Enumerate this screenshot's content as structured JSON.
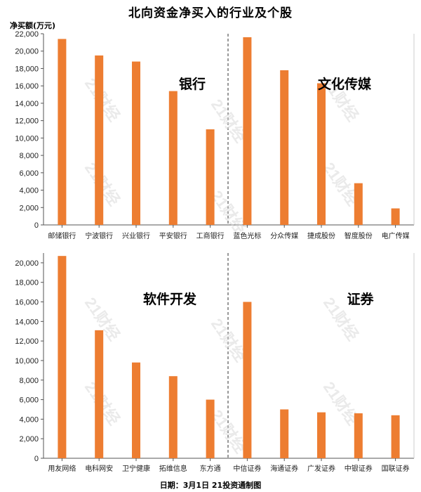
{
  "title": "北向资金净买入的行业及个股",
  "unit_label": "净买额(万元)",
  "footer": "日期：3月1日 21投资通制图",
  "watermark": "21财经",
  "colors": {
    "bar": "#ED7D31",
    "axis": "#555555",
    "divider": "#333333"
  },
  "chart_data": [
    {
      "type": "bar",
      "ylim": [
        0,
        22000
      ],
      "yticks": [
        "0",
        "2,000",
        "4,000",
        "6,000",
        "8,000",
        "10,000",
        "12,000",
        "14,000",
        "16,000",
        "18,000",
        "20,000",
        "22,000"
      ],
      "tick_values": [
        0,
        2000,
        4000,
        6000,
        8000,
        10000,
        12000,
        14000,
        16000,
        18000,
        20000,
        22000
      ],
      "groups": [
        {
          "label": "银行",
          "categories": [
            "邮储银行",
            "宁波银行",
            "兴业银行",
            "平安银行",
            "工商银行"
          ],
          "values": [
            21400,
            19500,
            18800,
            15400,
            11000
          ]
        },
        {
          "label": "文化传媒",
          "categories": [
            "蓝色光标",
            "分众传媒",
            "捷成股份",
            "智度股份",
            "电广传媒"
          ],
          "values": [
            21600,
            17800,
            16300,
            4800,
            1900
          ]
        }
      ]
    },
    {
      "type": "bar",
      "ylim": [
        0,
        21000
      ],
      "yticks": [
        "0",
        "2,000",
        "4,000",
        "6,000",
        "8,000",
        "10,000",
        "12,000",
        "14,000",
        "16,000",
        "18,000",
        "20,000"
      ],
      "tick_values": [
        0,
        2000,
        4000,
        6000,
        8000,
        10000,
        12000,
        14000,
        16000,
        18000,
        20000
      ],
      "groups": [
        {
          "label": "软件开发",
          "categories": [
            "用友网络",
            "电科网安",
            "卫宁健康",
            "拓维信息",
            "东方通"
          ],
          "values": [
            20700,
            13100,
            9800,
            8400,
            6000
          ]
        },
        {
          "label": "证券",
          "categories": [
            "中信证券",
            "海通证券",
            "广发证券",
            "中银证券",
            "国联证券"
          ],
          "values": [
            16000,
            5000,
            4700,
            4600,
            4400
          ]
        }
      ]
    }
  ]
}
